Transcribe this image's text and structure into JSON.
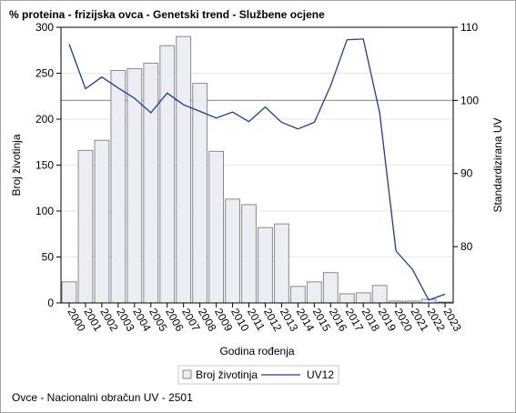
{
  "title": "% proteina - frizijska ovca - Genetski trend - Službene ocjene",
  "footer": "Ovce - Nacionalni obračun UV - 2501",
  "chart_data": {
    "type": "bar+line",
    "categories": [
      "2000",
      "2001",
      "2002",
      "2003",
      "2004",
      "2005",
      "2006",
      "2007",
      "2008",
      "2009",
      "2010",
      "2011",
      "2012",
      "2013",
      "2014",
      "2015",
      "2016",
      "2017",
      "2018",
      "2019",
      "2020",
      "2021",
      "2022",
      "2023"
    ],
    "series": [
      {
        "name": "Broj životinja",
        "axis": "left",
        "type": "bar",
        "values": [
          23,
          166,
          177,
          253,
          255,
          261,
          280,
          290,
          239,
          165,
          113,
          107,
          82,
          86,
          18,
          23,
          33,
          10,
          11,
          19,
          2,
          2,
          4,
          1
        ]
      },
      {
        "name": "UV12",
        "axis": "right",
        "type": "line",
        "values": [
          107.7,
          101.6,
          103.2,
          101.7,
          100.3,
          98.3,
          101.0,
          99.4,
          98.5,
          97.6,
          98.4,
          97.1,
          99.1,
          97.0,
          96.1,
          97.0,
          102.0,
          108.3,
          108.4,
          98.3,
          79.4,
          76.9,
          72.7,
          73.5
        ]
      }
    ],
    "xlabel": "Godina rođenja",
    "ylabel": "Broj životinja",
    "y2label": "Standardizirana UV",
    "ylim": [
      0,
      300
    ],
    "yticks": [
      0,
      50,
      100,
      150,
      200,
      250,
      300
    ],
    "y2lim": [
      72.3,
      110
    ],
    "y2ticks": [
      80,
      90,
      100,
      110
    ],
    "reference_line_y2": 100,
    "legend": [
      "Broj životinja",
      "UV12"
    ],
    "legend_position": "bottom",
    "colors": {
      "bar_fill": "#eceef3",
      "bar_stroke": "#8a8a8a",
      "line": "#1f3d8f",
      "refline": "#9a9a9a",
      "grid": "#e6e6e6"
    }
  }
}
